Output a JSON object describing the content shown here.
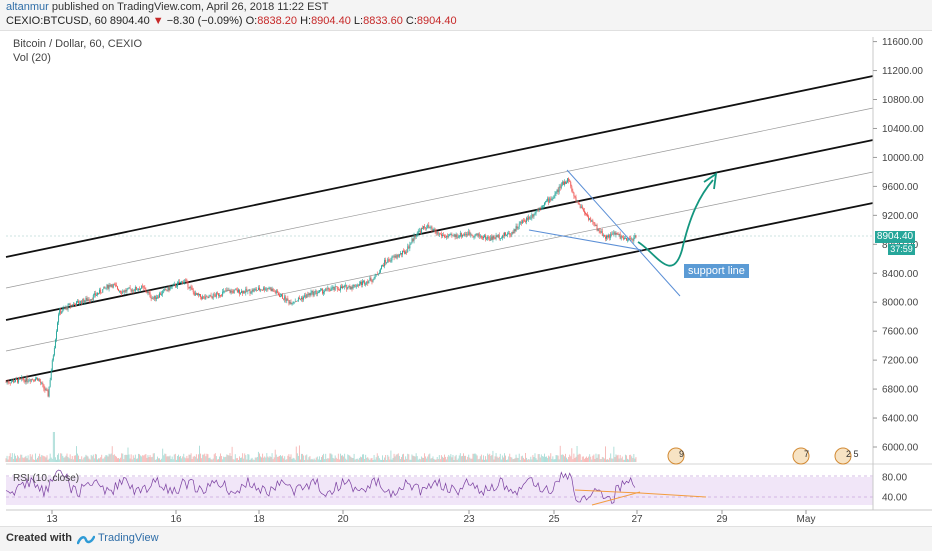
{
  "header": {
    "author": "altanmur",
    "published_text": "published on TradingView.com, April 26, 2018 11:22 EST",
    "symbol_line": "CEXIO:BTCUSD, 60",
    "last_price": "8904.40",
    "change": "−8.30 (−0.09%)",
    "ohlc": {
      "o_label": "O:",
      "o": "8838.20",
      "h_label": "H:",
      "h": "8904.40",
      "l_label": "L:",
      "l": "8833.60",
      "c_label": "C:",
      "c": "8904.40"
    }
  },
  "chart_data": {
    "type": "candlestick",
    "title": "Bitcoin / Dollar, 60, CEXIO",
    "volume_label": "Vol (20)",
    "rsi_label": "RSI (10, close)",
    "x_ticks": [
      "13",
      "16",
      "18",
      "20",
      "23",
      "25",
      "27",
      "29",
      "May"
    ],
    "y_ticks": [
      11600,
      11200,
      10800,
      10400,
      10000,
      9600,
      9200,
      8800,
      8400,
      8000,
      7600,
      7200,
      6800,
      6400,
      6000
    ],
    "ylim": [
      5880,
      11750
    ],
    "rsi_ticks": [
      80,
      40
    ],
    "price_path": [
      [
        0,
        6900
      ],
      [
        3,
        6950
      ],
      [
        4,
        6720
      ],
      [
        5,
        7850
      ],
      [
        6,
        7950
      ],
      [
        8,
        8050
      ],
      [
        10,
        8250
      ],
      [
        11,
        8150
      ],
      [
        13,
        8200
      ],
      [
        14,
        8050
      ],
      [
        15,
        8150
      ],
      [
        17,
        8300
      ],
      [
        18,
        8100
      ],
      [
        19,
        8050
      ],
      [
        21,
        8150
      ],
      [
        23,
        8150
      ],
      [
        25,
        8200
      ],
      [
        27,
        8000
      ],
      [
        28,
        8050
      ],
      [
        29,
        8120
      ],
      [
        31,
        8180
      ],
      [
        33,
        8220
      ],
      [
        35,
        8330
      ],
      [
        36,
        8550
      ],
      [
        38,
        8700
      ],
      [
        39,
        8950
      ],
      [
        40,
        9050
      ],
      [
        41,
        8950
      ],
      [
        42,
        8900
      ],
      [
        44,
        8950
      ],
      [
        46,
        8880
      ],
      [
        48,
        8950
      ],
      [
        49,
        9100
      ],
      [
        50,
        9200
      ],
      [
        51,
        9350
      ],
      [
        52,
        9450
      ],
      [
        53,
        9650
      ],
      [
        53.5,
        9700
      ],
      [
        54,
        9450
      ],
      [
        55,
        9250
      ],
      [
        56,
        9050
      ],
      [
        57,
        8900
      ],
      [
        58,
        8950
      ],
      [
        59,
        8850
      ],
      [
        60,
        8904
      ]
    ],
    "annotations": {
      "support_line_label": "support line",
      "last_price_tag": "8904.40",
      "countdown_tag": "37:59",
      "event_badges": [
        "9",
        "7",
        "2 5"
      ]
    },
    "grid": false
  }
}
